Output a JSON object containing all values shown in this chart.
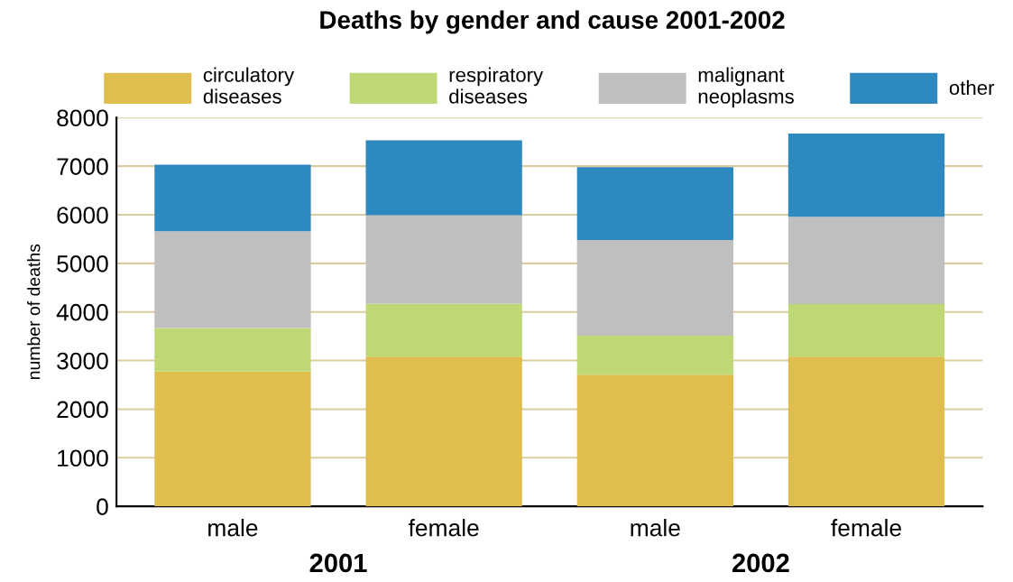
{
  "chart_data": {
    "type": "bar",
    "title": "Deaths by gender and cause 2001-2002",
    "ylabel": "number of deaths",
    "categories": [
      "male",
      "female",
      "male",
      "female"
    ],
    "stacked": true,
    "series": [
      {
        "name": "circulatory\ndiseases",
        "color": "#dfbe4e",
        "values": [
          2780,
          3080,
          2710,
          3080
        ]
      },
      {
        "name": "respiratory\ndiseases",
        "color": "#bdd874",
        "values": [
          890,
          1090,
          800,
          1080
        ]
      },
      {
        "name": "malignant\nneoplasms",
        "color": "#bfbfbf",
        "values": [
          1990,
          1820,
          1970,
          1800
        ]
      },
      {
        "name": "other",
        "color": "#2e89be",
        "values": [
          1370,
          1540,
          1500,
          1710
        ]
      }
    ],
    "ylim": [
      0,
      8000
    ],
    "yticks": [
      0,
      1000,
      2000,
      3000,
      4000,
      5000,
      6000,
      7000,
      8000
    ],
    "grid": "y",
    "legend": "top",
    "annotations": [
      "2001",
      "2002"
    ]
  }
}
